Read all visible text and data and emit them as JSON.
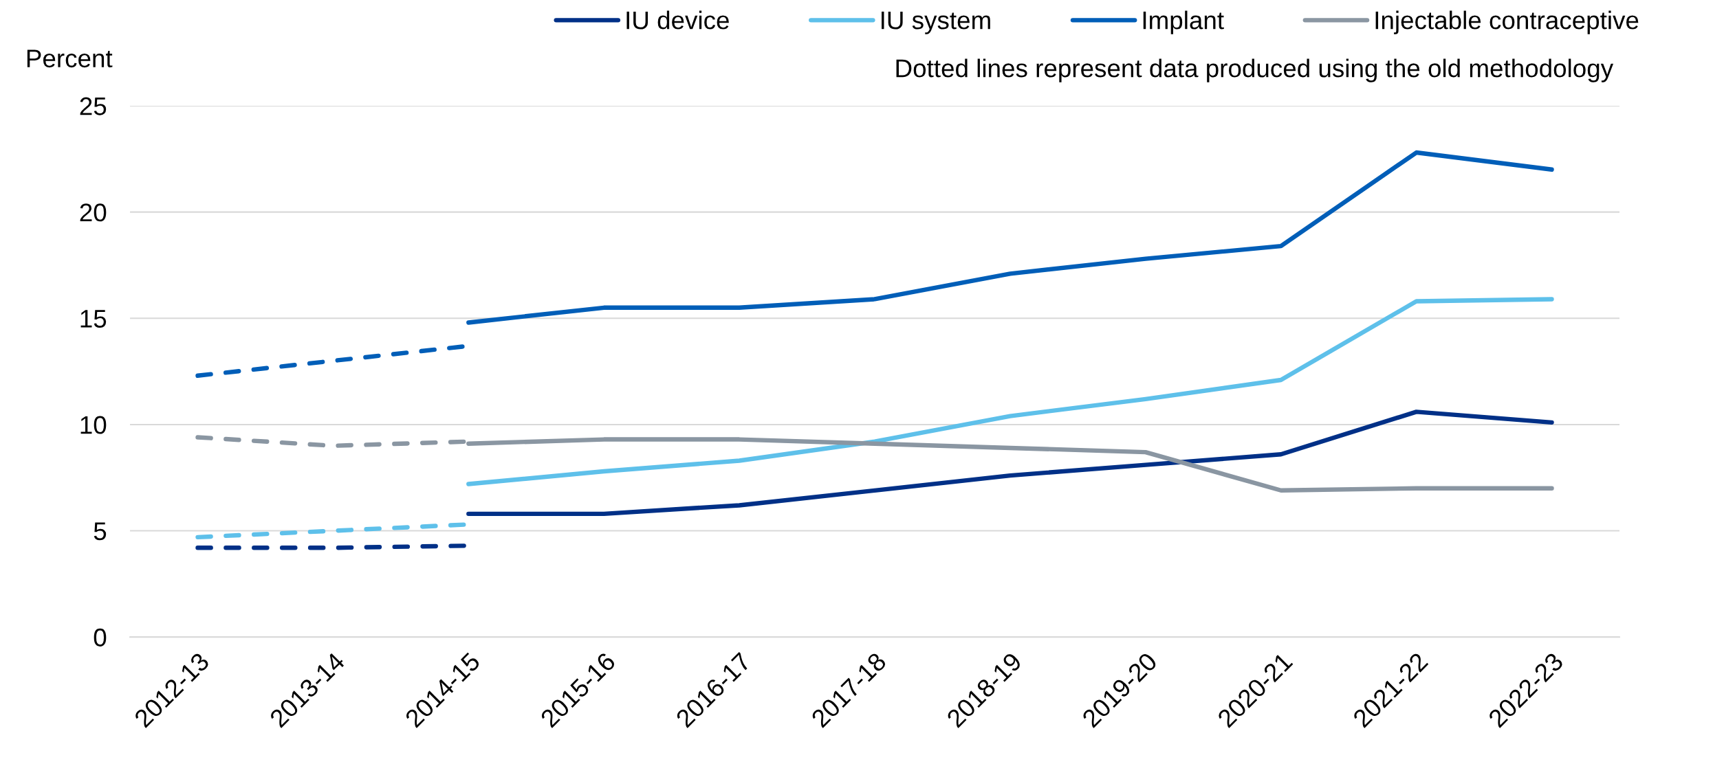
{
  "chart_data": {
    "type": "line",
    "ylabel": "Percent",
    "categories": [
      "2012-13",
      "2013-14",
      "2014-15",
      "2015-16",
      "2016-17",
      "2017-18",
      "2018-19",
      "2019-20",
      "2020-21",
      "2021-22",
      "2022-23"
    ],
    "series": [
      {
        "name": "IU device",
        "color": "#003087",
        "line_style": "solid",
        "values": [
          null,
          null,
          5.8,
          5.8,
          6.2,
          6.9,
          7.6,
          8.1,
          8.6,
          10.6,
          10.1
        ]
      },
      {
        "name": "IU system",
        "color": "#5ec0ea",
        "line_style": "solid",
        "values": [
          null,
          null,
          7.2,
          7.8,
          8.3,
          9.2,
          10.4,
          11.2,
          12.1,
          15.8,
          15.9
        ]
      },
      {
        "name": "Implant",
        "color": "#005eb8",
        "line_style": "solid",
        "values": [
          null,
          null,
          14.8,
          15.5,
          15.5,
          15.9,
          17.1,
          17.8,
          18.4,
          22.8,
          22.0
        ]
      },
      {
        "name": "Injectable contraceptive",
        "color": "#8a96a2",
        "line_style": "solid",
        "values": [
          null,
          null,
          9.1,
          9.3,
          9.3,
          9.1,
          8.9,
          8.7,
          6.9,
          7.0,
          7.0
        ]
      },
      {
        "color": "#003087",
        "line_style": "dashed",
        "values": [
          4.2,
          4.2,
          4.3,
          null,
          null,
          null,
          null,
          null,
          null,
          null,
          null
        ]
      },
      {
        "color": "#5ec0ea",
        "line_style": "dashed",
        "values": [
          4.7,
          5.0,
          5.3,
          null,
          null,
          null,
          null,
          null,
          null,
          null,
          null
        ]
      },
      {
        "color": "#005eb8",
        "line_style": "dashed",
        "values": [
          12.3,
          13.0,
          13.7,
          null,
          null,
          null,
          null,
          null,
          null,
          null,
          null
        ]
      },
      {
        "color": "#8a96a2",
        "line_style": "dashed",
        "values": [
          9.4,
          9.0,
          9.2,
          null,
          null,
          null,
          null,
          null,
          null,
          null,
          null
        ]
      }
    ],
    "ylim": [
      0,
      25
    ],
    "yticks": [
      0,
      5,
      10,
      15,
      20,
      25
    ],
    "grid": "y",
    "legend": "top right",
    "annotations": [
      "Dotted lines represent data produced using the old methodology"
    ]
  }
}
